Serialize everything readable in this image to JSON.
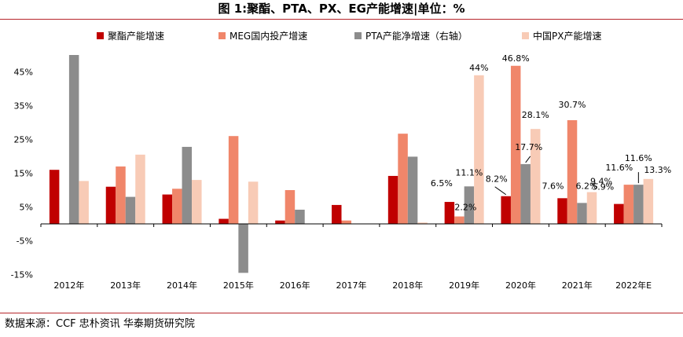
{
  "title": "图 1:聚酯、PTA、PX、EG产能增速|单位：%",
  "source": "数据来源：CCF 忠朴资讯 华泰期货研究院",
  "chart_data": {
    "type": "bar",
    "categories": [
      "2012年",
      "2013年",
      "2014年",
      "2015年",
      "2016年",
      "2017年",
      "2018年",
      "2019年",
      "2020年",
      "2021年",
      "2022年E"
    ],
    "y_ticks": [
      "45%",
      "35%",
      "25%",
      "15%",
      "5%",
      "-5%",
      "-15%"
    ],
    "ylim": [
      -15,
      50
    ],
    "series": [
      {
        "name": "聚酯产能增速",
        "color": "#c00000",
        "values": [
          16.0,
          11.0,
          8.7,
          1.5,
          1.0,
          5.6,
          14.2,
          6.5,
          8.2,
          7.6,
          5.9
        ]
      },
      {
        "name": "MEG国内投产增速",
        "color": "#f0866a",
        "values": [
          0,
          17.0,
          10.4,
          26.0,
          10.0,
          1.0,
          26.7,
          2.2,
          46.8,
          30.7,
          11.6
        ]
      },
      {
        "name": "PTA产能净增速（右轴）",
        "color": "#8c8c8c",
        "values": [
          50.0,
          8.0,
          22.8,
          -14.5,
          4.2,
          0,
          19.9,
          11.1,
          17.7,
          6.2,
          11.6
        ]
      },
      {
        "name": "中国PX产能增速",
        "color": "#f8cbb6",
        "values": [
          12.7,
          20.5,
          13.0,
          12.5,
          0,
          0,
          0.4,
          44.0,
          28.1,
          9.4,
          13.3
        ]
      }
    ],
    "data_labels": [
      {
        "category": "2019年",
        "series": 0,
        "text": "6.5%"
      },
      {
        "category": "2019年",
        "series": 1,
        "text": "2.2%"
      },
      {
        "category": "2019年",
        "series": 2,
        "text": "11.1%"
      },
      {
        "category": "2019年",
        "series": 3,
        "text": "44%"
      },
      {
        "category": "2020年",
        "series": 0,
        "text": "8.2%"
      },
      {
        "category": "2020年",
        "series": 1,
        "text": "46.8%"
      },
      {
        "category": "2020年",
        "series": 2,
        "text": "17.7%"
      },
      {
        "category": "2020年",
        "series": 3,
        "text": "28.1%"
      },
      {
        "category": "2021年",
        "series": 0,
        "text": "7.6%"
      },
      {
        "category": "2021年",
        "series": 1,
        "text": "30.7%"
      },
      {
        "category": "2021年",
        "series": 2,
        "text": "6.2%"
      },
      {
        "category": "2021年",
        "series": 3,
        "text": "9.4%"
      },
      {
        "category": "2022年E",
        "series": 0,
        "text": "5.9%"
      },
      {
        "category": "2022年E",
        "series": 1,
        "text": "11.6%"
      },
      {
        "category": "2022年E",
        "series": 2,
        "text": "11.6%"
      },
      {
        "category": "2022年E",
        "series": 3,
        "text": "13.3%"
      }
    ],
    "legend_position": "top",
    "grid": false
  }
}
